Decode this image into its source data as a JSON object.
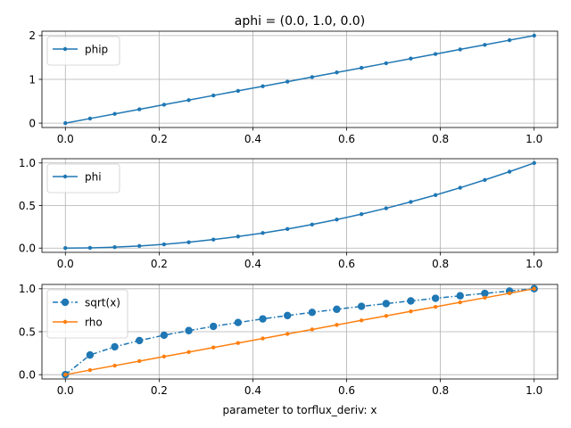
{
  "figure": {
    "title": "aphi = (0.0, 1.0, 0.0)",
    "xlabel": "parameter to torflux_deriv: x"
  },
  "chart_data": [
    {
      "type": "line",
      "xlim": [
        -0.05,
        1.05
      ],
      "ylim": [
        -0.1,
        2.1
      ],
      "xticks": [
        0.0,
        0.2,
        0.4,
        0.6,
        0.8,
        1.0
      ],
      "xtick_labels": [
        "0.0",
        "0.2",
        "0.4",
        "0.6",
        "0.8",
        "1.0"
      ],
      "yticks": [
        0,
        1,
        2
      ],
      "ytick_labels": [
        "0",
        "1",
        "2"
      ],
      "grid": true,
      "legend": "top-left",
      "x": [
        0.0,
        0.0526,
        0.1053,
        0.1579,
        0.2105,
        0.2632,
        0.3158,
        0.3684,
        0.4211,
        0.4737,
        0.5263,
        0.5789,
        0.6316,
        0.6842,
        0.7368,
        0.7895,
        0.8421,
        0.8947,
        0.9474,
        1.0
      ],
      "series": [
        {
          "name": "phip",
          "color": "#1f77b4",
          "marker": "small-dot",
          "linestyle": "solid",
          "fn": "2x",
          "values": [
            0.0,
            0.105,
            0.211,
            0.316,
            0.421,
            0.526,
            0.632,
            0.737,
            0.842,
            0.947,
            1.053,
            1.158,
            1.263,
            1.368,
            1.474,
            1.579,
            1.684,
            1.789,
            1.895,
            2.0
          ]
        }
      ]
    },
    {
      "type": "line",
      "xlim": [
        -0.05,
        1.05
      ],
      "ylim": [
        -0.05,
        1.05
      ],
      "xticks": [
        0.0,
        0.2,
        0.4,
        0.6,
        0.8,
        1.0
      ],
      "xtick_labels": [
        "0.0",
        "0.2",
        "0.4",
        "0.6",
        "0.8",
        "1.0"
      ],
      "yticks": [
        0.0,
        0.5,
        1.0
      ],
      "ytick_labels": [
        "0.0",
        "0.5",
        "1.0"
      ],
      "grid": true,
      "legend": "top-left",
      "x": [
        0.0,
        0.0526,
        0.1053,
        0.1579,
        0.2105,
        0.2632,
        0.3158,
        0.3684,
        0.4211,
        0.4737,
        0.5263,
        0.5789,
        0.6316,
        0.6842,
        0.7368,
        0.7895,
        0.8421,
        0.8947,
        0.9474,
        1.0
      ],
      "series": [
        {
          "name": "phi",
          "color": "#1f77b4",
          "marker": "small-dot",
          "linestyle": "solid",
          "fn": "x^2",
          "values": [
            0.0,
            0.003,
            0.011,
            0.025,
            0.044,
            0.069,
            0.1,
            0.136,
            0.177,
            0.224,
            0.277,
            0.335,
            0.399,
            0.468,
            0.543,
            0.623,
            0.709,
            0.801,
            0.898,
            1.0
          ]
        }
      ]
    },
    {
      "type": "line",
      "xlim": [
        -0.05,
        1.05
      ],
      "ylim": [
        -0.05,
        1.05
      ],
      "xticks": [
        0.0,
        0.2,
        0.4,
        0.6,
        0.8,
        1.0
      ],
      "xtick_labels": [
        "0.0",
        "0.2",
        "0.4",
        "0.6",
        "0.8",
        "1.0"
      ],
      "yticks": [
        0.0,
        0.5,
        1.0
      ],
      "ytick_labels": [
        "0.0",
        "0.5",
        "1.0"
      ],
      "grid": true,
      "legend": "top-left",
      "x": [
        0.0,
        0.0526,
        0.1053,
        0.1579,
        0.2105,
        0.2632,
        0.3158,
        0.3684,
        0.4211,
        0.4737,
        0.5263,
        0.5789,
        0.6316,
        0.6842,
        0.7368,
        0.7895,
        0.8421,
        0.8947,
        0.9474,
        1.0
      ],
      "series": [
        {
          "name": "sqrt(x)",
          "color": "#1f77b4",
          "marker": "big-dot",
          "linestyle": "dashdot",
          "fn": "sqrt(x)",
          "values": [
            0.0,
            0.229,
            0.324,
            0.397,
            0.459,
            0.513,
            0.562,
            0.607,
            0.649,
            0.688,
            0.725,
            0.761,
            0.795,
            0.827,
            0.858,
            0.889,
            0.918,
            0.946,
            0.973,
            1.0
          ]
        },
        {
          "name": "rho",
          "color": "#ff7f0e",
          "marker": "small-dot",
          "linestyle": "solid",
          "fn": "x",
          "values": [
            0.0,
            0.053,
            0.105,
            0.158,
            0.211,
            0.263,
            0.316,
            0.368,
            0.421,
            0.474,
            0.526,
            0.579,
            0.632,
            0.684,
            0.737,
            0.789,
            0.842,
            0.895,
            0.947,
            1.0
          ]
        }
      ]
    }
  ]
}
